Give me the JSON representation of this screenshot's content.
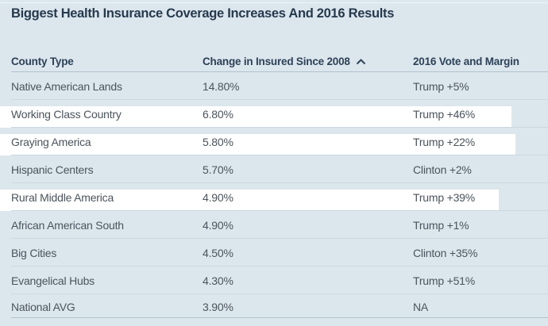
{
  "title": "Biggest Health Insurance Coverage Increases And 2016 Results",
  "colors": {
    "background": "#dce6ed",
    "title_text": "#263a4d",
    "header_text": "#2c4257",
    "body_text": "#4b545c",
    "row_separator": "#ccd8e1",
    "header_rule": "#b3c2cd",
    "row_highlight": "#ffffff"
  },
  "table": {
    "columns": [
      {
        "label": "County Type",
        "sorted": false
      },
      {
        "label": "Change in Insured Since 2008",
        "sorted": true,
        "sort_icon": "chevron-up-icon"
      },
      {
        "label": "2016 Vote and Margin",
        "sorted": false
      }
    ],
    "rows": [
      {
        "county_type": "Native American Lands",
        "change_in_insured": "14.80%",
        "vote_margin": "Trump +5%",
        "highlighted": false
      },
      {
        "county_type": "Working Class Country",
        "change_in_insured": "6.80%",
        "vote_margin": "Trump +46%",
        "highlighted": true,
        "highlight_width": 644
      },
      {
        "county_type": "Graying America",
        "change_in_insured": "5.80%",
        "vote_margin": "Trump +22%",
        "highlighted": true,
        "highlight_width": 649
      },
      {
        "county_type": "Hispanic Centers",
        "change_in_insured": "5.70%",
        "vote_margin": "Clinton +2%",
        "highlighted": false
      },
      {
        "county_type": "Rural Middle America",
        "change_in_insured": "4.90%",
        "vote_margin": "Trump +39%",
        "highlighted": true,
        "highlight_width": 628
      },
      {
        "county_type": "African American South",
        "change_in_insured": "4.90%",
        "vote_margin": "Trump +1%",
        "highlighted": false
      },
      {
        "county_type": "Big Cities",
        "change_in_insured": "4.50%",
        "vote_margin": "Clinton +35%",
        "highlighted": false
      },
      {
        "county_type": "Evangelical Hubs",
        "change_in_insured": "4.30%",
        "vote_margin": "Trump +51%",
        "highlighted": false
      },
      {
        "county_type": "National AVG",
        "change_in_insured": "3.90%",
        "vote_margin": "NA",
        "highlighted": false
      }
    ]
  },
  "chart_data": {
    "type": "table",
    "title": "Biggest Health Insurance Coverage Increases And 2016 Results",
    "columns": [
      "County Type",
      "Change in Insured Since 2008",
      "2016 Vote and Margin"
    ],
    "rows": [
      [
        "Native American Lands",
        "14.80%",
        "Trump +5%"
      ],
      [
        "Working Class Country",
        "6.80%",
        "Trump +46%"
      ],
      [
        "Graying America",
        "5.80%",
        "Trump +22%"
      ],
      [
        "Hispanic Centers",
        "5.70%",
        "Clinton +2%"
      ],
      [
        "Rural Middle America",
        "4.90%",
        "Trump +39%"
      ],
      [
        "African American South",
        "4.90%",
        "Trump +1%"
      ],
      [
        "Big Cities",
        "4.50%",
        "Clinton +35%"
      ],
      [
        "Evangelical Hubs",
        "4.30%",
        "Trump +51%"
      ],
      [
        "National AVG",
        "3.90%",
        "NA"
      ]
    ],
    "change_in_insured_pct": [
      14.8,
      6.8,
      5.8,
      5.7,
      4.9,
      4.9,
      4.5,
      4.3,
      3.9
    ],
    "sort": {
      "column": "Change in Insured Since 2008",
      "indicator": "caret-up"
    },
    "highlighted_rows": [
      "Working Class Country",
      "Graying America",
      "Rural Middle America"
    ]
  }
}
